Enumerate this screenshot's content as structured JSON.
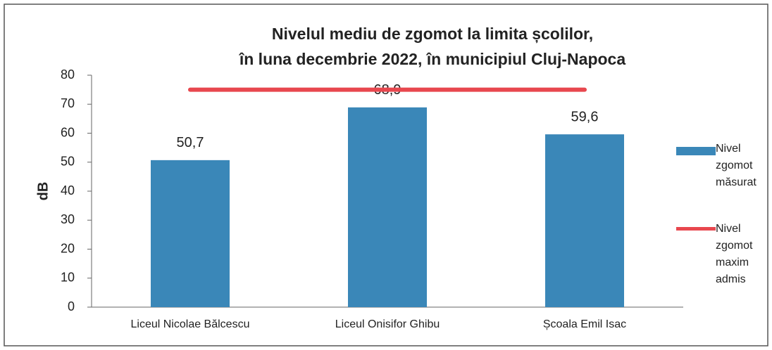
{
  "chart_data": {
    "type": "bar",
    "title": [
      "Nivelul mediu de zgomot la limita școlilor,",
      "în luna decembrie 2022, în municipiul Cluj-Napoca"
    ],
    "y_label": "dB",
    "categories": [
      "Liceul Nicolae Bălcescu",
      "Liceul Onisifor Ghibu",
      "Școala Emil Isac"
    ],
    "series": [
      {
        "name": "Nivel zgomot măsurat",
        "type": "bar",
        "color": "#3a87b8",
        "values": [
          50.7,
          68.9,
          59.6
        ],
        "value_labels": [
          "50,7",
          "68,9",
          "59,6"
        ]
      },
      {
        "name": "Nivel zgomot maxim admis",
        "type": "line",
        "color": "#e8474e",
        "values": [
          75,
          75,
          75
        ]
      }
    ],
    "ylim": [
      0,
      80
    ],
    "yticks": [
      0,
      10,
      20,
      30,
      40,
      50,
      60,
      70,
      80
    ],
    "grid": false,
    "legend": "right"
  }
}
